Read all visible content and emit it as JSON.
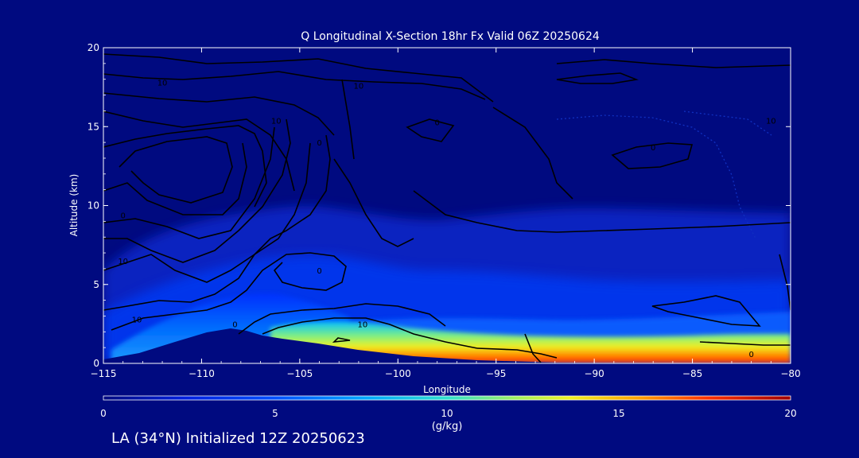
{
  "chart_data": {
    "type": "heatmap",
    "title": "Q Longitudinal X-Section 18hr  Fx Valid 06Z 20250624",
    "xlabel": "Longitude",
    "ylabel": "Altitude (km)",
    "xlim": [
      -115,
      -80
    ],
    "ylim": [
      0,
      20
    ],
    "x_ticks": [
      "−115",
      "−110",
      "−105",
      "−100",
      "−95",
      "−90",
      "−85",
      "−80"
    ],
    "y_ticks": [
      "0",
      "5",
      "10",
      "15",
      "20"
    ],
    "colorbar": {
      "label": "(g/kg)",
      "range": [
        0,
        20
      ],
      "ticks": [
        "0",
        "5",
        "10",
        "15",
        "20"
      ]
    },
    "contour_labels": [
      {
        "text": "10",
        "x": -112.0,
        "y": 17.8
      },
      {
        "text": "10",
        "x": -102.0,
        "y": 17.6
      },
      {
        "text": "10",
        "x": -106.2,
        "y": 15.4
      },
      {
        "text": "0",
        "x": -98.0,
        "y": 15.3
      },
      {
        "text": "0",
        "x": -104.0,
        "y": 14.0
      },
      {
        "text": "10",
        "x": -81.0,
        "y": 15.4
      },
      {
        "text": "0",
        "x": -87.0,
        "y": 13.7
      },
      {
        "text": "0",
        "x": -114.0,
        "y": 9.4
      },
      {
        "text": "10",
        "x": -114.0,
        "y": 6.5
      },
      {
        "text": "0",
        "x": -104.0,
        "y": 5.9
      },
      {
        "text": "10",
        "x": -113.3,
        "y": 2.8
      },
      {
        "text": "0",
        "x": -108.3,
        "y": 2.5
      },
      {
        "text": "10",
        "x": -101.8,
        "y": 2.5
      },
      {
        "text": "0",
        "x": -82.0,
        "y": 0.6
      }
    ],
    "terrain": [
      {
        "lon": -115,
        "alt": 0.3
      },
      {
        "lon": -112,
        "alt": 0.7
      },
      {
        "lon": -110,
        "alt": 1.6
      },
      {
        "lon": -108.5,
        "alt": 2.1
      },
      {
        "lon": -107,
        "alt": 1.8
      },
      {
        "lon": -106,
        "alt": 1.7
      },
      {
        "lon": -104,
        "alt": 1.4
      },
      {
        "lon": -100,
        "alt": 0.8
      },
      {
        "lon": -96,
        "alt": 0.3
      },
      {
        "lon": -92,
        "alt": 0.1
      },
      {
        "lon": -80,
        "alt": 0.0
      }
    ],
    "moisture_surface_max": [
      {
        "lon": -115,
        "q": 4
      },
      {
        "lon": -110,
        "q": 5
      },
      {
        "lon": -106,
        "q": 14
      },
      {
        "lon": -100,
        "q": 18
      },
      {
        "lon": -95,
        "q": 17
      },
      {
        "lon": -90,
        "q": 17
      },
      {
        "lon": -85,
        "q": 18
      },
      {
        "lon": -80,
        "q": 19
      }
    ]
  },
  "footer": "LA (34°N) Initialized 12Z 20250623"
}
